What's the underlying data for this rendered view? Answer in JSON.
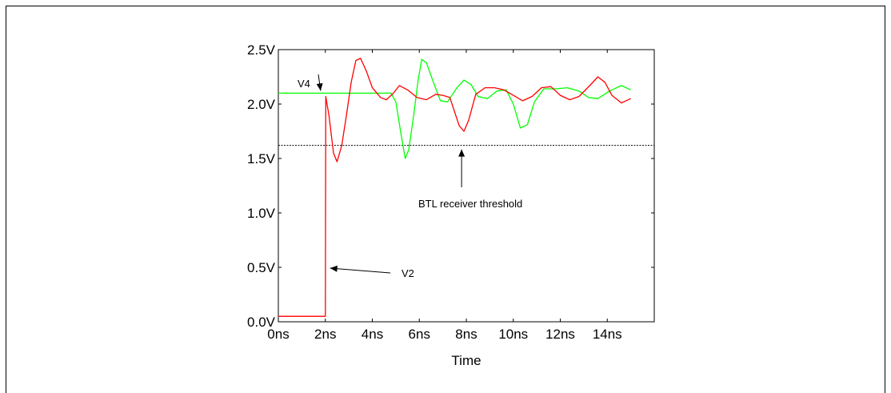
{
  "chart_data": {
    "type": "line",
    "xlabel": "Time",
    "ylabel": "",
    "xlim": [
      0,
      16
    ],
    "ylim": [
      0,
      2.5
    ],
    "x_ticks": [
      {
        "value": 0,
        "label": "0ns"
      },
      {
        "value": 2,
        "label": "2ns"
      },
      {
        "value": 4,
        "label": "4ns"
      },
      {
        "value": 6,
        "label": "6ns"
      },
      {
        "value": 8,
        "label": "8ns"
      },
      {
        "value": 10,
        "label": "10ns"
      },
      {
        "value": 12,
        "label": "12ns"
      },
      {
        "value": 14,
        "label": "14ns"
      }
    ],
    "y_ticks": [
      {
        "value": 0,
        "label": "0.0V"
      },
      {
        "value": 0.5,
        "label": "0.5V"
      },
      {
        "value": 1.0,
        "label": "1.0V"
      },
      {
        "value": 1.5,
        "label": "1.5V"
      },
      {
        "value": 2.0,
        "label": "2.0V"
      },
      {
        "value": 2.5,
        "label": "2.5V"
      }
    ],
    "grid": false,
    "threshold": {
      "value": 1.62,
      "label": "BTL receiver threshold"
    },
    "series": [
      {
        "name": "V4",
        "color": "#00ff00",
        "points": [
          [
            0,
            2.1
          ],
          [
            4.8,
            2.1
          ],
          [
            5.0,
            2.02
          ],
          [
            5.2,
            1.75
          ],
          [
            5.4,
            1.5
          ],
          [
            5.55,
            1.58
          ],
          [
            5.75,
            1.88
          ],
          [
            5.95,
            2.22
          ],
          [
            6.1,
            2.41
          ],
          [
            6.3,
            2.38
          ],
          [
            6.6,
            2.2
          ],
          [
            6.9,
            2.03
          ],
          [
            7.2,
            2.02
          ],
          [
            7.6,
            2.15
          ],
          [
            7.9,
            2.22
          ],
          [
            8.2,
            2.18
          ],
          [
            8.5,
            2.07
          ],
          [
            8.9,
            2.05
          ],
          [
            9.3,
            2.12
          ],
          [
            9.7,
            2.13
          ],
          [
            10.0,
            2.0
          ],
          [
            10.3,
            1.78
          ],
          [
            10.6,
            1.81
          ],
          [
            10.9,
            2.02
          ],
          [
            11.3,
            2.14
          ],
          [
            11.8,
            2.14
          ],
          [
            12.3,
            2.15
          ],
          [
            12.8,
            2.12
          ],
          [
            13.2,
            2.06
          ],
          [
            13.6,
            2.05
          ],
          [
            14.1,
            2.12
          ],
          [
            14.6,
            2.17
          ],
          [
            15.0,
            2.13
          ]
        ]
      },
      {
        "name": "V2",
        "color": "#ff0000",
        "points": [
          [
            0,
            0.05
          ],
          [
            2.0,
            0.05
          ],
          [
            2.02,
            2.07
          ],
          [
            2.15,
            1.9
          ],
          [
            2.35,
            1.55
          ],
          [
            2.5,
            1.47
          ],
          [
            2.7,
            1.62
          ],
          [
            2.9,
            1.9
          ],
          [
            3.1,
            2.2
          ],
          [
            3.3,
            2.4
          ],
          [
            3.5,
            2.42
          ],
          [
            3.75,
            2.3
          ],
          [
            4.0,
            2.15
          ],
          [
            4.35,
            2.06
          ],
          [
            4.6,
            2.04
          ],
          [
            4.9,
            2.1
          ],
          [
            5.15,
            2.17
          ],
          [
            5.5,
            2.13
          ],
          [
            5.9,
            2.06
          ],
          [
            6.3,
            2.04
          ],
          [
            6.7,
            2.09
          ],
          [
            7.0,
            2.08
          ],
          [
            7.3,
            2.06
          ],
          [
            7.7,
            1.8
          ],
          [
            7.9,
            1.75
          ],
          [
            8.1,
            1.85
          ],
          [
            8.4,
            2.09
          ],
          [
            8.8,
            2.15
          ],
          [
            9.2,
            2.15
          ],
          [
            9.6,
            2.13
          ],
          [
            10.0,
            2.08
          ],
          [
            10.4,
            2.03
          ],
          [
            10.8,
            2.07
          ],
          [
            11.2,
            2.15
          ],
          [
            11.6,
            2.16
          ],
          [
            12.0,
            2.08
          ],
          [
            12.4,
            2.04
          ],
          [
            12.8,
            2.07
          ],
          [
            13.3,
            2.18
          ],
          [
            13.6,
            2.25
          ],
          [
            13.9,
            2.2
          ],
          [
            14.2,
            2.08
          ],
          [
            14.6,
            2.01
          ],
          [
            15.0,
            2.05
          ]
        ]
      }
    ],
    "annotations": [
      {
        "text": "V4",
        "target": [
          1.8,
          2.1
        ]
      },
      {
        "text": "V2",
        "target": [
          2.2,
          0.5
        ]
      },
      {
        "text": "BTL receiver threshold",
        "target": [
          7.8,
          1.62
        ]
      }
    ]
  }
}
